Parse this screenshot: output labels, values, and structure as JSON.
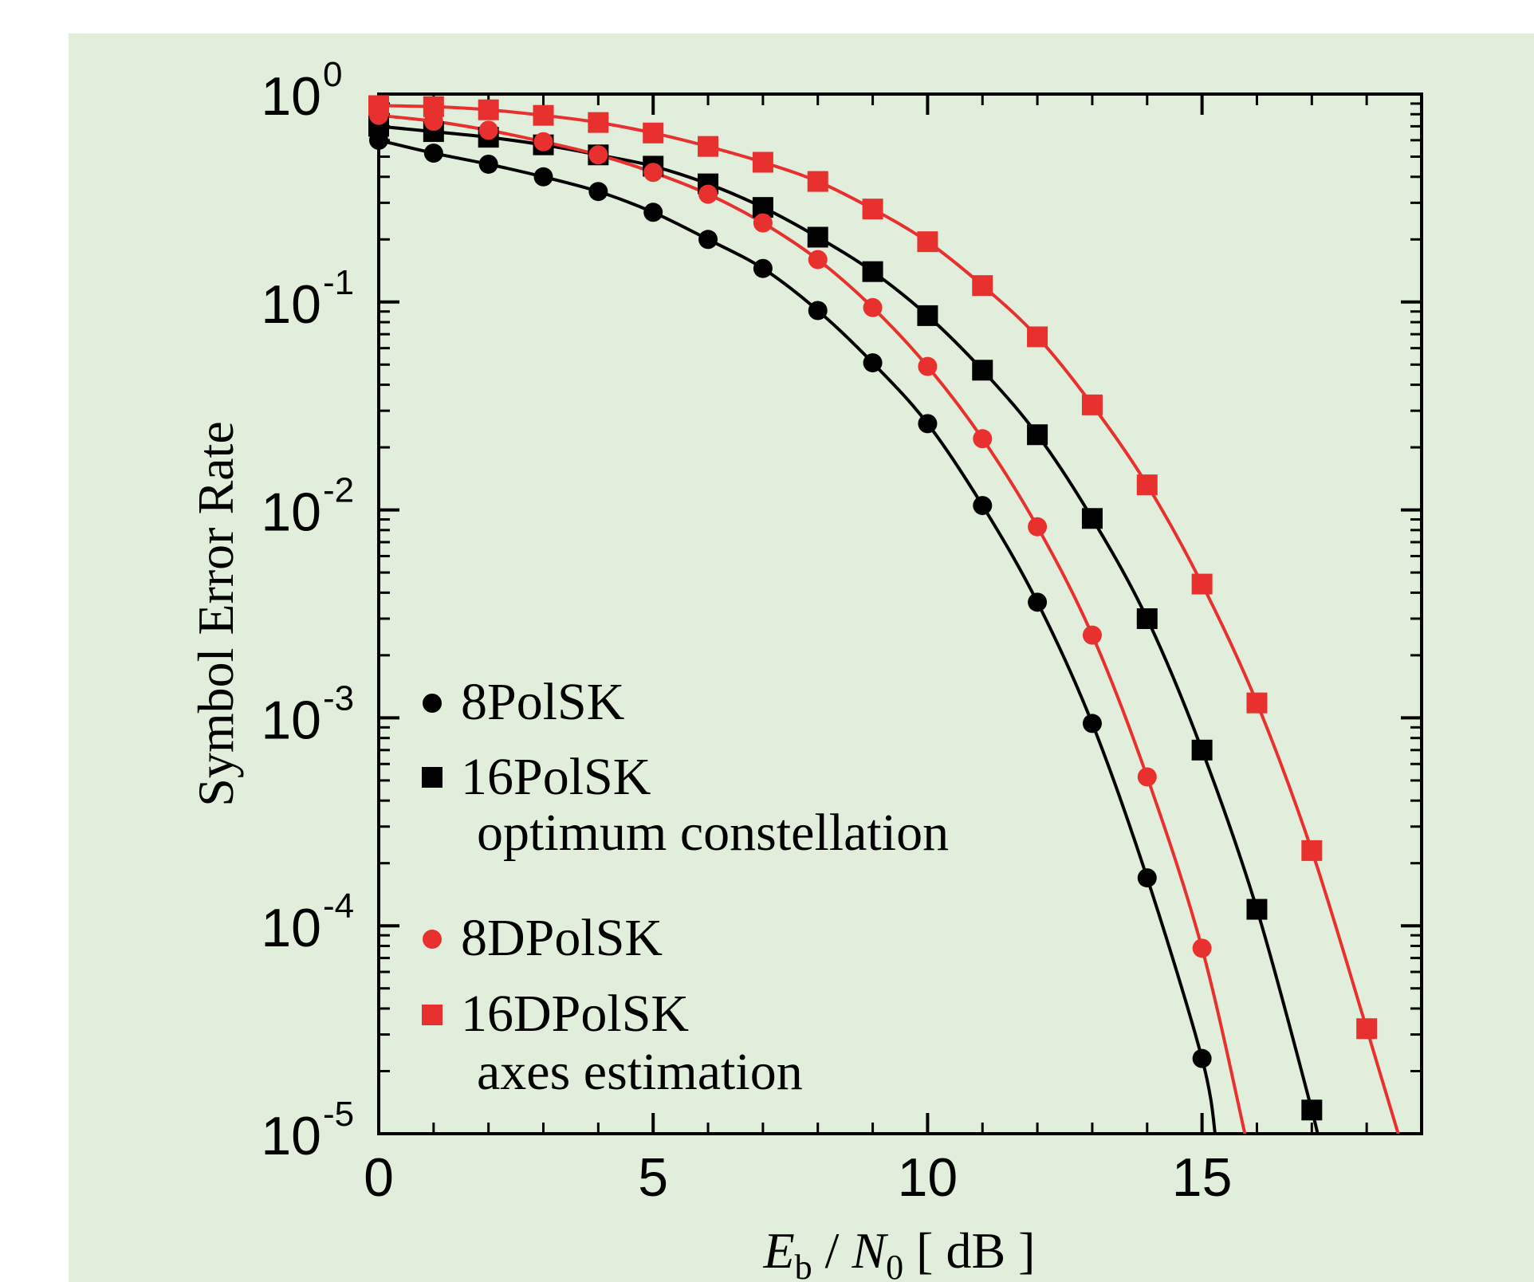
{
  "chart_data": {
    "type": "line",
    "title": "",
    "xlabel": "E_b / N_0 [ dB ]",
    "xlabel_parts": {
      "main1": "E",
      "sub1": "b",
      "sep": " / ",
      "main2": "N",
      "sub2": "0",
      "unit": " [ dB ]"
    },
    "ylabel": "Symbol Error Rate",
    "xlim": [
      0,
      19
    ],
    "ylim": [
      1e-05,
      1
    ],
    "yscale": "log",
    "grid": false,
    "legend_position": "bottom-left",
    "x_ticks": [
      0,
      5,
      10,
      15
    ],
    "y_ticks": [
      {
        "value": 1,
        "base": "10",
        "exp": "0"
      },
      {
        "value": 0.1,
        "base": "10",
        "exp": "-1"
      },
      {
        "value": 0.01,
        "base": "10",
        "exp": "-2"
      },
      {
        "value": 0.001,
        "base": "10",
        "exp": "-3"
      },
      {
        "value": 0.0001,
        "base": "10",
        "exp": "-4"
      },
      {
        "value": 1e-05,
        "base": "10",
        "exp": "-5"
      }
    ],
    "series": [
      {
        "name": "8PolSK",
        "marker": "circle",
        "color": "#000000",
        "x": [
          0,
          1,
          2,
          3,
          4,
          5,
          6,
          7,
          8,
          9,
          10,
          11,
          12,
          13,
          14,
          15
        ],
        "y": [
          0.6,
          0.52,
          0.46,
          0.4,
          0.34,
          0.27,
          0.2,
          0.145,
          0.091,
          0.051,
          0.026,
          0.0105,
          0.0036,
          0.00094,
          0.00017,
          2.3e-05
        ],
        "line_end": [
          15.25,
          1e-05
        ]
      },
      {
        "name": "16PolSK",
        "marker": "square",
        "color": "#000000",
        "x": [
          0,
          1,
          2,
          3,
          4,
          5,
          6,
          7,
          8,
          9,
          10,
          11,
          12,
          13,
          14,
          15,
          16,
          17
        ],
        "y": [
          0.7,
          0.66,
          0.62,
          0.57,
          0.51,
          0.45,
          0.37,
          0.285,
          0.205,
          0.14,
          0.086,
          0.047,
          0.023,
          0.0091,
          0.003,
          0.0007,
          0.00012,
          1.3e-05
        ],
        "line_end": [
          17.1,
          1e-05
        ],
        "caption": "optimum constellation"
      },
      {
        "name": "8DPolSK",
        "marker": "circle",
        "color": "#e8302e",
        "x": [
          0,
          1,
          2,
          3,
          4,
          5,
          6,
          7,
          8,
          9,
          10,
          11,
          12,
          13,
          14,
          15
        ],
        "y": [
          0.79,
          0.74,
          0.67,
          0.59,
          0.51,
          0.42,
          0.33,
          0.24,
          0.16,
          0.094,
          0.049,
          0.022,
          0.0083,
          0.0025,
          0.00052,
          7.8e-05
        ],
        "line_end": [
          15.8,
          1e-05
        ]
      },
      {
        "name": "16DPolSK",
        "marker": "square",
        "color": "#e8302e",
        "x": [
          0,
          1,
          2,
          3,
          4,
          5,
          6,
          7,
          8,
          9,
          10,
          11,
          12,
          13,
          14,
          15,
          16,
          17,
          18
        ],
        "y": [
          0.88,
          0.87,
          0.84,
          0.79,
          0.73,
          0.65,
          0.56,
          0.47,
          0.38,
          0.28,
          0.195,
          0.12,
          0.068,
          0.032,
          0.0132,
          0.0044,
          0.00118,
          0.00023,
          3.2e-05
        ],
        "line_end": [
          18.6,
          1e-05
        ],
        "caption": "axes estimation"
      }
    ]
  }
}
